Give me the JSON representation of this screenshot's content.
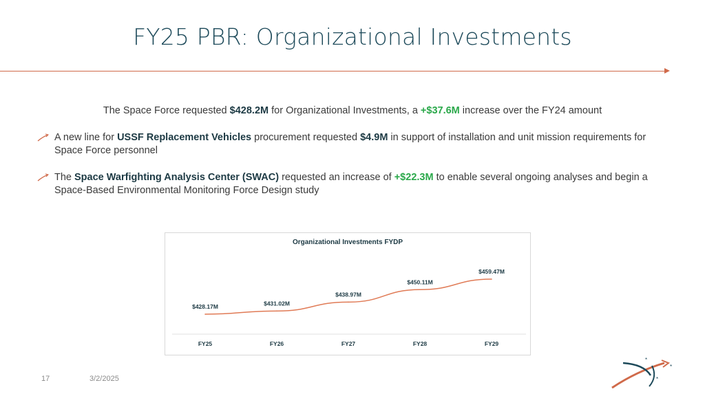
{
  "slide": {
    "title": "FY25 PBR: Organizational Investments",
    "intro": {
      "pre": "The Space Force requested ",
      "amount": "$428.2M",
      "mid": " for Organizational Investments, a ",
      "increase": "+$37.6M",
      "post": " increase over the FY24 amount"
    },
    "bullets": [
      {
        "pre": "A new line for ",
        "bold": "USSF Replacement Vehicles",
        "mid": " procurement requested ",
        "amount": "$4.9M",
        "post": " in support of installation and unit mission requirements for Space Force personnel"
      },
      {
        "pre": "The ",
        "bold": "Space Warfighting Analysis Center (SWAC)",
        "mid": " requested an increase of ",
        "amount": "+$22.3M",
        "post": " to enable several ongoing analyses and begin a Space-Based Environmental Monitoring Force Design study"
      }
    ],
    "page_number": "17",
    "date": "3/2/2025"
  },
  "colors": {
    "title": "#1d4a5a",
    "accent": "#d06a4a",
    "bold_dark": "#1d3a44",
    "green": "#2aa84a"
  },
  "chart_data": {
    "type": "line",
    "title": "Organizational Investments FYDP",
    "categories": [
      "FY25",
      "FY26",
      "FY27",
      "FY28",
      "FY29"
    ],
    "values": [
      428.17,
      431.02,
      438.97,
      450.11,
      459.47
    ],
    "labels": [
      "$428.17M",
      "$431.02M",
      "$438.97M",
      "$450.11M",
      "$459.47M"
    ],
    "xlabel": "",
    "ylabel": "",
    "grid": false,
    "legend": "none",
    "line_color": "#e07a55"
  }
}
